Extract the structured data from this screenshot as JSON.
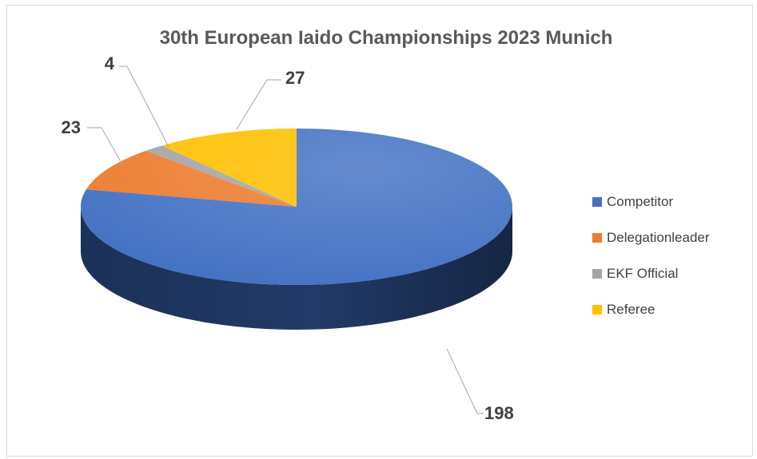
{
  "chart_data": {
    "type": "pie",
    "title": "30th European Iaido Championships 2023 Munich",
    "categories": [
      "Competitor",
      "Delegationleader",
      "EKF Official",
      "Referee"
    ],
    "values": [
      198,
      23,
      4,
      27
    ],
    "colors": [
      "#4472c4",
      "#ed7d31",
      "#a5a5a5",
      "#ffc000"
    ],
    "side_colors": [
      "#213a68",
      "#9a4a14",
      "#6e6e6e",
      "#b38600"
    ],
    "legend": "right",
    "style": "3d"
  }
}
